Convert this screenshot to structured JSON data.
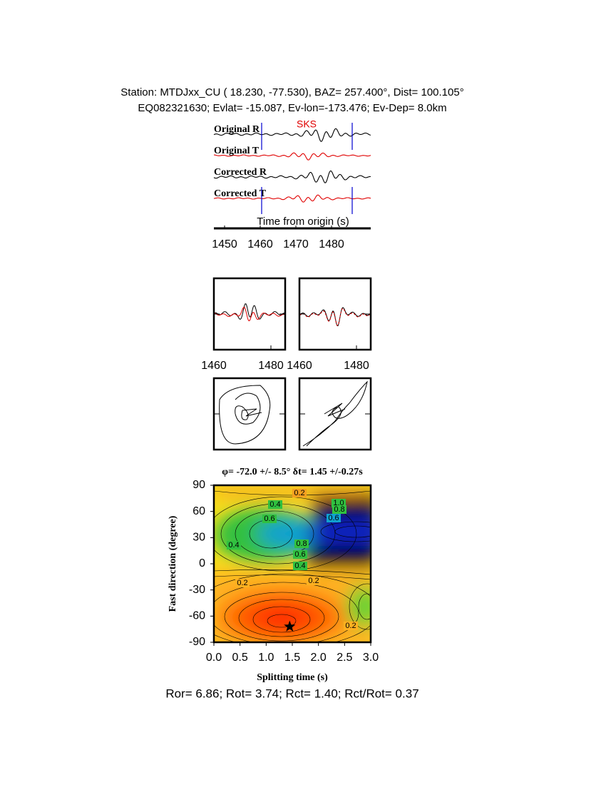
{
  "header": {
    "station": "Station: MTDJxx_CU (  18.230,  -77.530), BAZ=  257.400°, Dist=  100.105°",
    "event": "EQ082321630; Evlat= -15.087, Ev-lon=-173.476; Ev-Dep=  8.0km"
  },
  "chart_data": [
    {
      "type": "line",
      "traces": [
        "Original R",
        "Original T",
        "Corrected R",
        "Corrected T"
      ],
      "annotation": "SKS",
      "x_label": "Time from origin (s)",
      "xlim": [
        1447,
        1491
      ],
      "xticks": [
        1450,
        1460,
        1470,
        1480
      ],
      "window": [
        1460.4,
        1485.8
      ],
      "colors": [
        "#000000",
        "#e00000",
        "#000000",
        "#e00000"
      ]
    },
    {
      "type": "line",
      "xlim": [
        1460,
        1485
      ],
      "xticks": [
        1460,
        1480
      ]
    },
    {
      "type": "line",
      "xlim": [
        1460,
        1485
      ],
      "xticks": [
        1460,
        1480
      ]
    },
    {
      "type": "contour",
      "title": "φ= -72.0 +/- 8.5° δt= 1.45 +/-0.27s",
      "x_label": "Splitting time (s)",
      "y_label": "Fast direction (degree)",
      "xlim": [
        0,
        3
      ],
      "xticks": [
        {
          "value": 0,
          "label": "0.0"
        },
        0.5,
        {
          "value": 1,
          "label": "1.0"
        },
        1.5,
        {
          "value": 2,
          "label": "2.0"
        },
        2.5,
        {
          "value": 3,
          "label": "3.0"
        }
      ],
      "ylim": [
        -90,
        90
      ],
      "yticks": [
        90,
        60,
        30,
        0,
        -30,
        -60,
        -90
      ],
      "contour_labels": [
        "0.2",
        "0.4",
        "0.6",
        "0.4",
        "0.6",
        "0.8",
        "1.0",
        "0.8",
        "0.6",
        "0.4",
        "0.2",
        "0.2",
        "0.2"
      ],
      "best": {
        "x": 1.45,
        "y": -72
      }
    }
  ],
  "footer": "Ror= 6.86; Rot= 3.74; Rct= 1.40; Rct/Rot= 0.37"
}
